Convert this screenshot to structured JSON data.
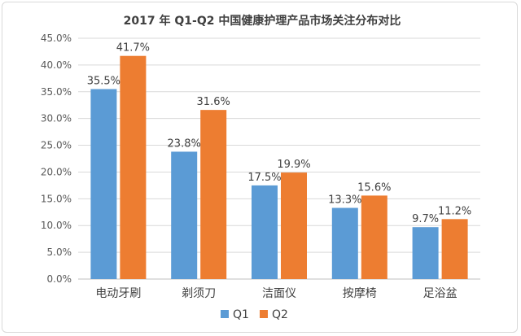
{
  "chart_data": {
    "type": "bar",
    "title": "2017 年 Q1-Q2 中国健康护理产品市场关注分布对比",
    "categories": [
      "电动牙刷",
      "剃须刀",
      "洁面仪",
      "按摩椅",
      "足浴盆"
    ],
    "series": [
      {
        "name": "Q1",
        "values": [
          35.5,
          23.8,
          17.5,
          13.3,
          9.7
        ],
        "labels": [
          "35.5%",
          "23.8%",
          "17.5%",
          "13.3%",
          "9.7%"
        ],
        "color": "#5B9BD5"
      },
      {
        "name": "Q2",
        "values": [
          41.7,
          31.6,
          19.9,
          15.6,
          11.2
        ],
        "labels": [
          "41.7%",
          "31.6%",
          "19.9%",
          "15.6%",
          "11.2%"
        ],
        "color": "#ED7D31"
      }
    ],
    "yticks": [
      "0.0%",
      "5.0%",
      "10.0%",
      "15.0%",
      "20.0%",
      "25.0%",
      "30.0%",
      "35.0%",
      "40.0%",
      "45.0%"
    ],
    "ylim": [
      0,
      45
    ],
    "grid": true,
    "legend": "bottom"
  }
}
